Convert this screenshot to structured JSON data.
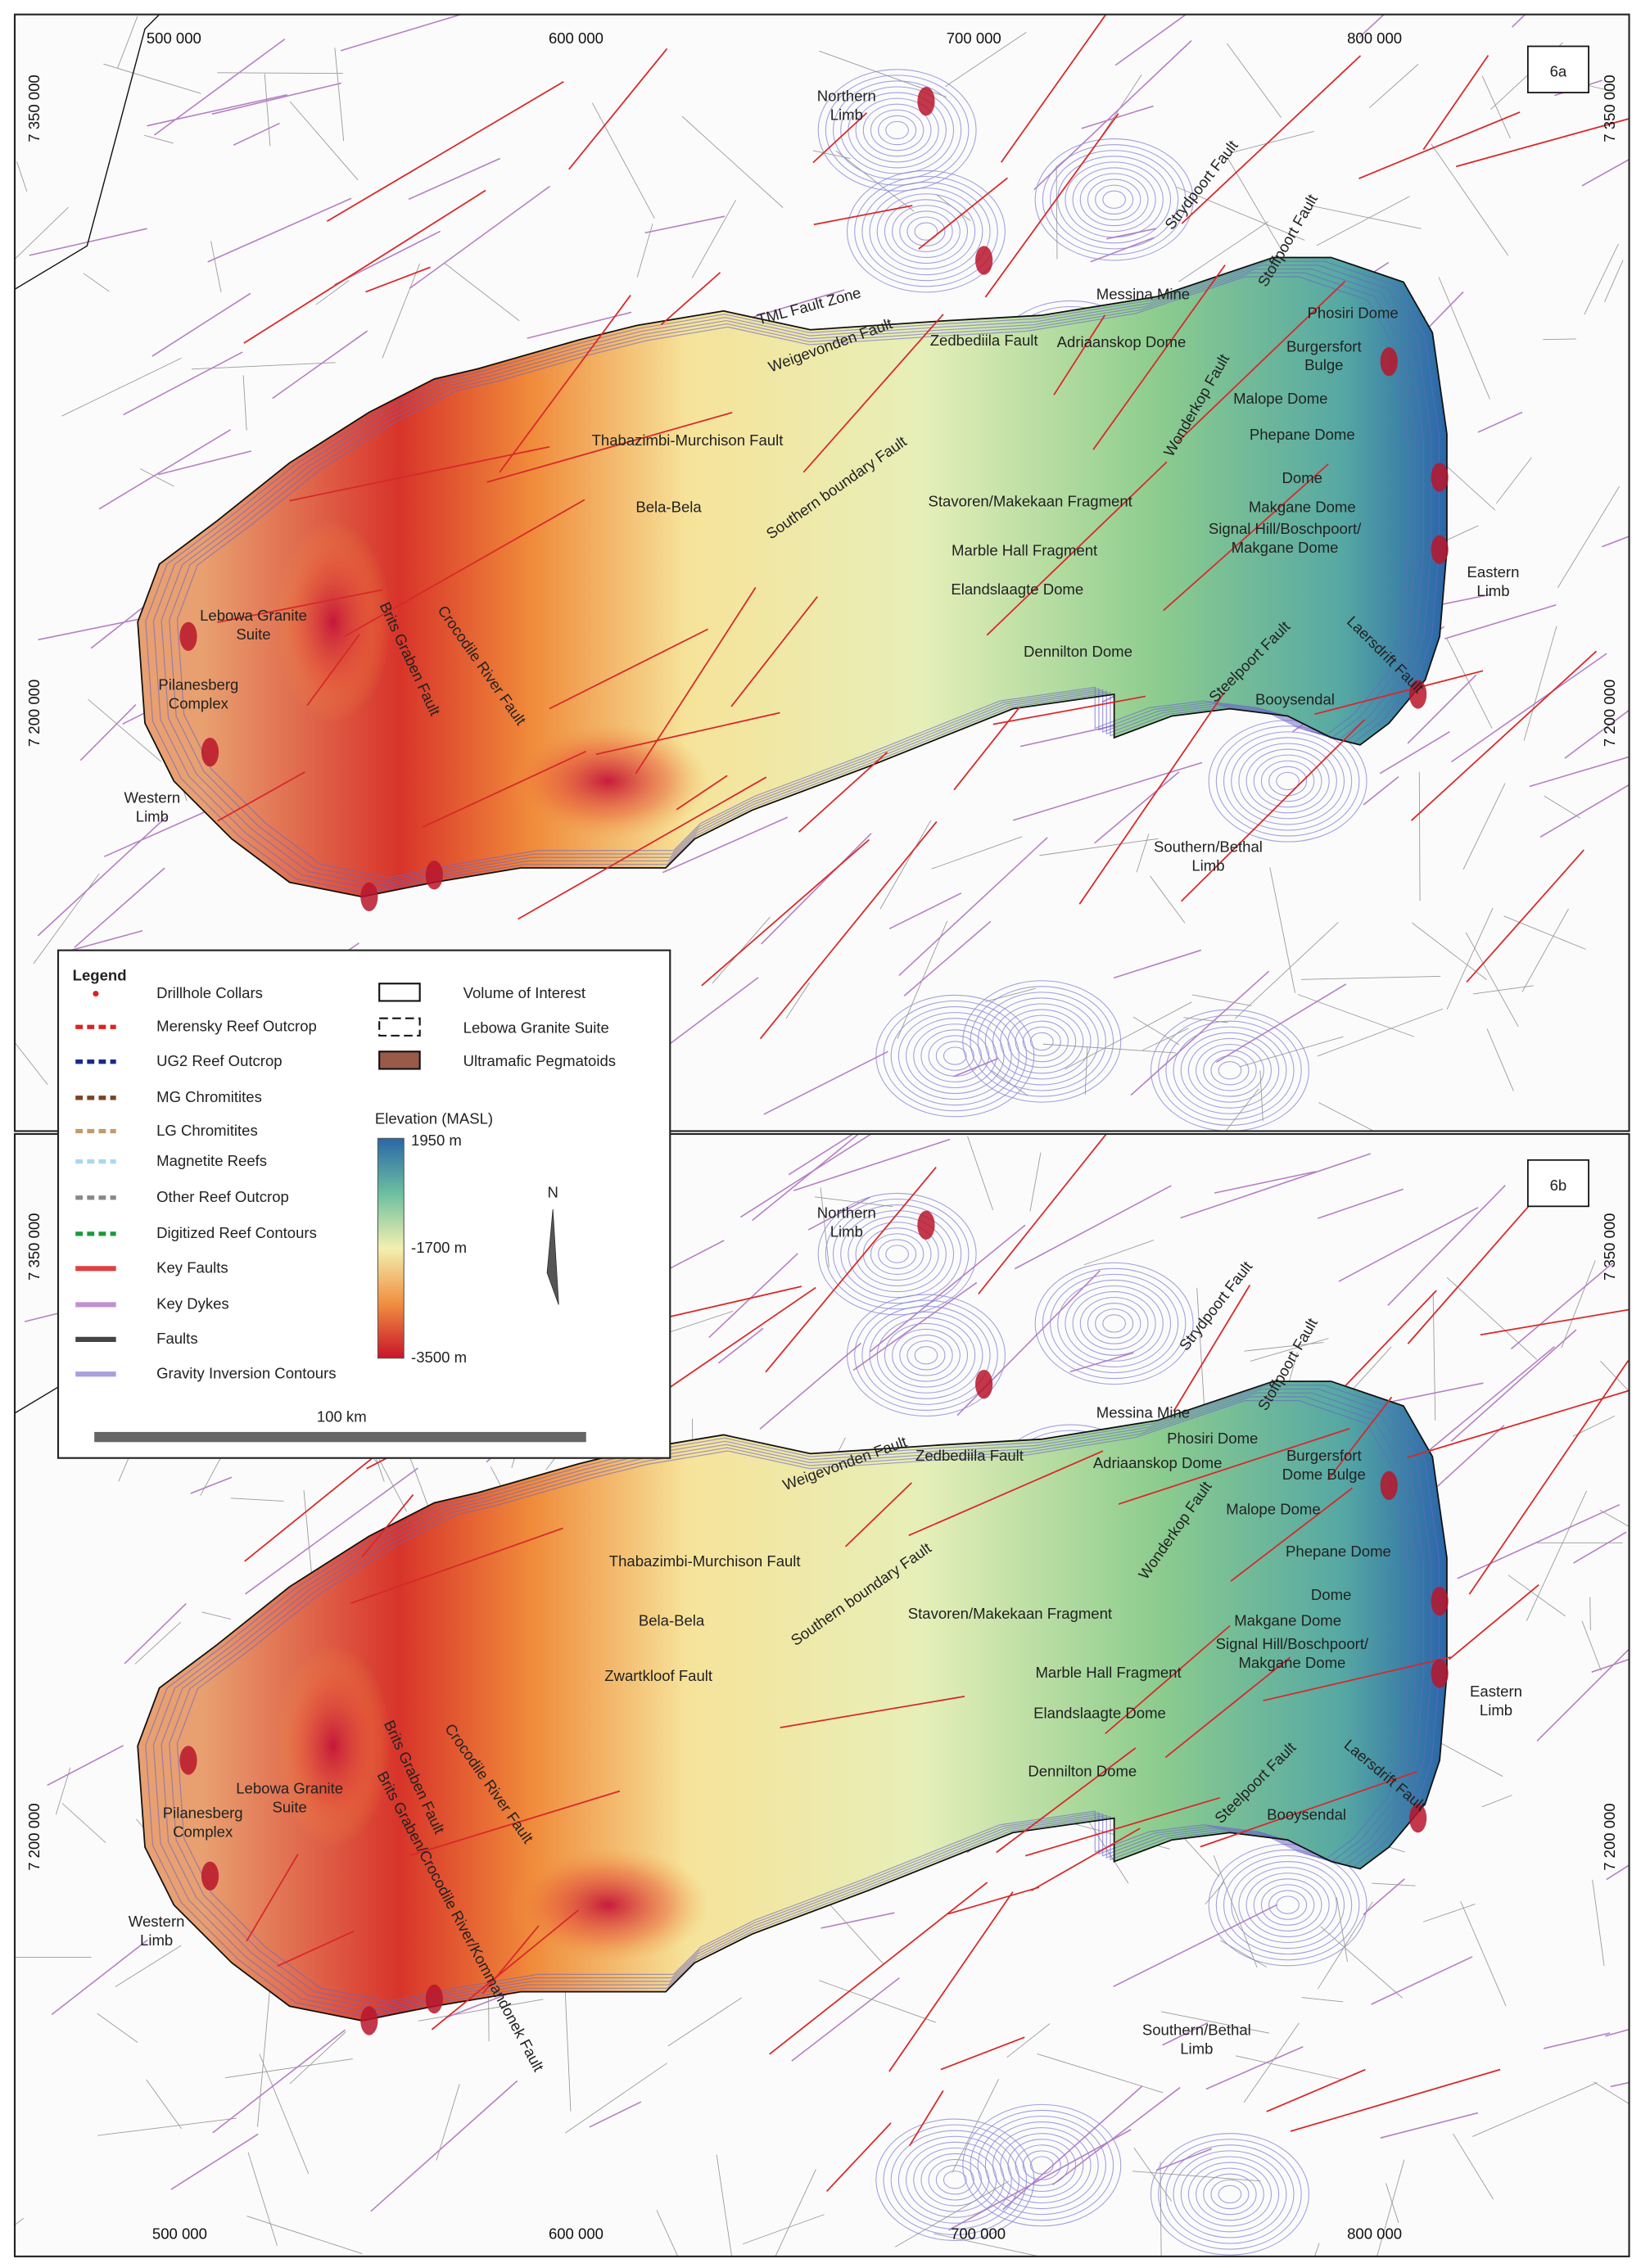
{
  "panels": [
    {
      "id": "6a",
      "top_axis_labels": [
        "500 000",
        "600 000",
        "700 000",
        "800 000"
      ],
      "left_axis_labels": [
        "7 350 000",
        "7 200 000"
      ],
      "right_axis_labels": [
        "7 350 000",
        "7 200 000"
      ],
      "places": [
        {
          "lines": [
            "Northern",
            "Limb"
          ]
        },
        {
          "lines": [
            "Strydpoort Fault"
          ]
        },
        {
          "lines": [
            "Stoffpoort Fault"
          ]
        },
        {
          "lines": [
            "Messina Mine"
          ]
        },
        {
          "lines": [
            "Phosiri Dome"
          ]
        },
        {
          "lines": [
            "TML Fault Zone"
          ]
        },
        {
          "lines": [
            "Weigevonden Fault"
          ]
        },
        {
          "lines": [
            "Zedbediila Fault"
          ]
        },
        {
          "lines": [
            "Adriaanskop Dome"
          ]
        },
        {
          "lines": [
            "Burgersfort",
            "Bulge"
          ]
        },
        {
          "lines": [
            "Wonderkop Fault"
          ]
        },
        {
          "lines": [
            "Malope Dome"
          ]
        },
        {
          "lines": [
            "Phepane Dome"
          ]
        },
        {
          "lines": [
            "Thabazimbi-Murchison Fault"
          ]
        },
        {
          "lines": [
            "Southern boundary Fault"
          ]
        },
        {
          "lines": [
            "Dome"
          ]
        },
        {
          "lines": [
            "Stavoren/Makekaan Fragment"
          ]
        },
        {
          "lines": [
            "Makgane Dome"
          ]
        },
        {
          "lines": [
            "Bela-Bela"
          ]
        },
        {
          "lines": [
            "Signal Hill/Boschpoort/",
            "Makgane Dome"
          ]
        },
        {
          "lines": [
            "Marble Hall Fragment"
          ]
        },
        {
          "lines": [
            "Eastern",
            "Limb"
          ]
        },
        {
          "lines": [
            "Elandslaagte Dome"
          ]
        },
        {
          "lines": [
            "Lebowa Granite",
            "Suite"
          ]
        },
        {
          "lines": [
            "Laersdrift Fault"
          ]
        },
        {
          "lines": [
            "Steelpoort Fault"
          ]
        },
        {
          "lines": [
            "Dennilton Dome"
          ]
        },
        {
          "lines": [
            "Brits Graben Fault"
          ]
        },
        {
          "lines": [
            "Crocodile River Fault"
          ]
        },
        {
          "lines": [
            "Pilanesberg",
            "Complex"
          ]
        },
        {
          "lines": [
            "Booysendal"
          ]
        },
        {
          "lines": [
            "Western",
            "Limb"
          ]
        },
        {
          "lines": [
            "Southern/Bethal",
            "Limb"
          ]
        }
      ]
    },
    {
      "id": "6b",
      "bottom_axis_labels": [
        "500 000",
        "600 000",
        "700 000",
        "800 000"
      ],
      "left_axis_labels": [
        "7 350 000",
        "7 200 000"
      ],
      "right_axis_labels": [
        "7 350 000",
        "7 200 000"
      ],
      "places": [
        {
          "lines": [
            "Northern",
            "Limb"
          ]
        },
        {
          "lines": [
            "Strydpoort Fault"
          ]
        },
        {
          "lines": [
            "Stoffpoort Fault"
          ]
        },
        {
          "lines": [
            "Messina Mine"
          ]
        },
        {
          "lines": [
            "Phosiri Dome"
          ]
        },
        {
          "lines": [
            "Burgersfort",
            "Dome Bulge"
          ]
        },
        {
          "lines": [
            "Weigevonden Fault"
          ]
        },
        {
          "lines": [
            "Zedbediila Fault"
          ]
        },
        {
          "lines": [
            "Adriaanskop Dome"
          ]
        },
        {
          "lines": [
            "Wonderkop Fault"
          ]
        },
        {
          "lines": [
            "Malope Dome"
          ]
        },
        {
          "lines": [
            "Phepane Dome"
          ]
        },
        {
          "lines": [
            "Thabazimbi-Murchison Fault"
          ]
        },
        {
          "lines": [
            "Southern boundary Fault"
          ]
        },
        {
          "lines": [
            "Dome"
          ]
        },
        {
          "lines": [
            "Stavoren/Makekaan Fragment"
          ]
        },
        {
          "lines": [
            "Makgane Dome"
          ]
        },
        {
          "lines": [
            "Bela-Bela"
          ]
        },
        {
          "lines": [
            "Signal Hill/Boschpoort/",
            "Makgane Dome"
          ]
        },
        {
          "lines": [
            "Zwartkloof Fault"
          ]
        },
        {
          "lines": [
            "Marble Hall Fragment"
          ]
        },
        {
          "lines": [
            "Eastern",
            "Limb"
          ]
        },
        {
          "lines": [
            "Elandslaagte Dome"
          ]
        },
        {
          "lines": [
            "Lebowa Granite",
            "Suite"
          ]
        },
        {
          "lines": [
            "Dennilton Dome"
          ]
        },
        {
          "lines": [
            "Laersdrift Fault"
          ]
        },
        {
          "lines": [
            "Steelpoort Fault"
          ]
        },
        {
          "lines": [
            "Crocodile River Fault"
          ]
        },
        {
          "lines": [
            "Brits Graben Fault"
          ]
        },
        {
          "lines": [
            "Brits Graben/Crocodile River/Kommandonek Fault"
          ]
        },
        {
          "lines": [
            "Pilanesberg",
            "Complex"
          ]
        },
        {
          "lines": [
            "Booysendal"
          ]
        },
        {
          "lines": [
            "Western",
            "Limb"
          ]
        },
        {
          "lines": [
            "Southern/Bethal",
            "Limb"
          ]
        }
      ]
    }
  ],
  "legend": {
    "title": "Legend",
    "items": [
      "Drillhole Collars",
      "Merensky Reef Outcrop",
      "UG2 Reef Outcrop",
      "MG Chromitites",
      "LG Chromitites",
      "Magnetite Reefs",
      "Other Reef Outcrop",
      "Digitized Reef Contours",
      "Key Faults",
      "Key Dykes",
      "Faults",
      "Gravity Inversion Contours"
    ],
    "polygons": [
      "Volume of Interest",
      "Lebowa Granite Suite",
      "Ultramafic Pegmatoids"
    ],
    "elevation": {
      "title": "Elevation (MASL)",
      "max": "1950 m",
      "mid": "-1700 m",
      "min": "-3500 m"
    },
    "north": "N",
    "scale_bar": "100 km"
  }
}
